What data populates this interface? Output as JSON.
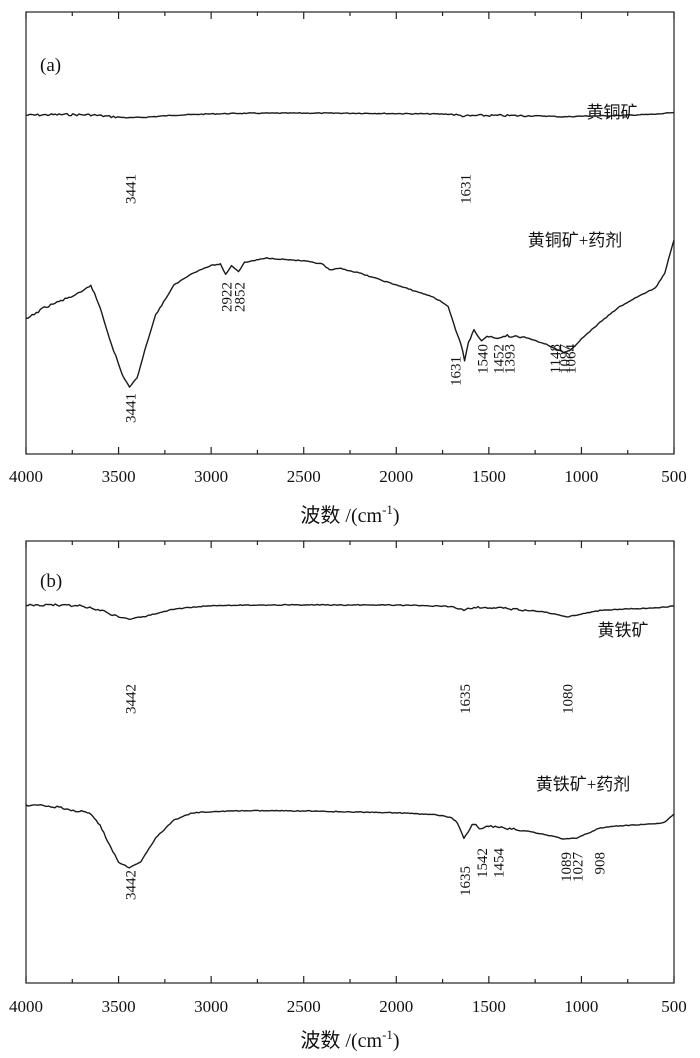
{
  "chart_data": [
    {
      "type": "line",
      "panel_label": "(a)",
      "xlabel": "波数 /(cm",
      "xlabel_sup": "-1",
      "xlabel_end": ")",
      "xlim": [
        4000,
        500
      ],
      "x_reversed": true,
      "x_ticks": [
        4000,
        3500,
        3000,
        2500,
        2000,
        1500,
        1000,
        500
      ],
      "y_ticks_shown": false,
      "series": [
        {
          "name": "黄铜矿",
          "points": [
            [
              4000,
              0.92
            ],
            [
              3800,
              0.93
            ],
            [
              3650,
              0.925
            ],
            [
              3550,
              0.9
            ],
            [
              3441,
              0.88
            ],
            [
              3350,
              0.89
            ],
            [
              3200,
              0.92
            ],
            [
              3000,
              0.94
            ],
            [
              2800,
              0.95
            ],
            [
              2500,
              0.952
            ],
            [
              2200,
              0.95
            ],
            [
              2000,
              0.945
            ],
            [
              1800,
              0.94
            ],
            [
              1700,
              0.935
            ],
            [
              1631,
              0.905
            ],
            [
              1560,
              0.915
            ],
            [
              1400,
              0.914
            ],
            [
              1200,
              0.907
            ],
            [
              1100,
              0.895
            ],
            [
              1000,
              0.905
            ],
            [
              800,
              0.915
            ],
            [
              600,
              0.935
            ],
            [
              500,
              0.96
            ]
          ],
          "peaks": [
            {
              "label": "3441",
              "x": 3441
            },
            {
              "label": "1631",
              "x": 1631
            }
          ]
        },
        {
          "name": "黄铜矿+药剂",
          "points": [
            [
              4000,
              0.47
            ],
            [
              3900,
              0.55
            ],
            [
              3800,
              0.6
            ],
            [
              3700,
              0.65
            ],
            [
              3650,
              0.7
            ],
            [
              3600,
              0.55
            ],
            [
              3550,
              0.35
            ],
            [
              3480,
              0.1
            ],
            [
              3441,
              0.02
            ],
            [
              3400,
              0.08
            ],
            [
              3350,
              0.3
            ],
            [
              3300,
              0.5
            ],
            [
              3200,
              0.7
            ],
            [
              3100,
              0.78
            ],
            [
              3000,
              0.83
            ],
            [
              2950,
              0.84
            ],
            [
              2922,
              0.77
            ],
            [
              2890,
              0.83
            ],
            [
              2852,
              0.79
            ],
            [
              2820,
              0.85
            ],
            [
              2700,
              0.88
            ],
            [
              2500,
              0.86
            ],
            [
              2400,
              0.84
            ],
            [
              2360,
              0.8
            ],
            [
              2300,
              0.81
            ],
            [
              2200,
              0.78
            ],
            [
              2000,
              0.7
            ],
            [
              1900,
              0.66
            ],
            [
              1800,
              0.62
            ],
            [
              1720,
              0.56
            ],
            [
              1680,
              0.4
            ],
            [
              1650,
              0.3
            ],
            [
              1631,
              0.2
            ],
            [
              1610,
              0.32
            ],
            [
              1580,
              0.4
            ],
            [
              1540,
              0.33
            ],
            [
              1500,
              0.36
            ],
            [
              1452,
              0.34
            ],
            [
              1400,
              0.37
            ],
            [
              1393,
              0.36
            ],
            [
              1300,
              0.35
            ],
            [
              1200,
              0.31
            ],
            [
              1148,
              0.28
            ],
            [
              1097,
              0.25
            ],
            [
              1064,
              0.26
            ],
            [
              1000,
              0.34
            ],
            [
              900,
              0.45
            ],
            [
              800,
              0.55
            ],
            [
              700,
              0.62
            ],
            [
              600,
              0.68
            ],
            [
              550,
              0.78
            ],
            [
              500,
              1.0
            ]
          ],
          "peaks": [
            {
              "label": "3441",
              "x": 3441
            },
            {
              "label": "2922",
              "x": 2922
            },
            {
              "label": "2852",
              "x": 2852
            },
            {
              "label": "1631",
              "x": 1631
            },
            {
              "label": "1540",
              "x": 1540
            },
            {
              "label": "1452",
              "x": 1452
            },
            {
              "label": "1393",
              "x": 1393
            },
            {
              "label": "1148",
              "x": 1148
            },
            {
              "label": "1097",
              "x": 1097
            },
            {
              "label": "1064",
              "x": 1064
            }
          ]
        }
      ]
    },
    {
      "type": "line",
      "panel_label": "(b)",
      "xlabel": "波数 /(cm",
      "xlabel_sup": "-1",
      "xlabel_end": ")",
      "xlim": [
        4000,
        500
      ],
      "x_reversed": true,
      "x_ticks": [
        4000,
        3500,
        3000,
        2500,
        2000,
        1500,
        1000,
        500
      ],
      "y_ticks_shown": false,
      "series": [
        {
          "name": "黄铁矿",
          "points": [
            [
              4000,
              0.95
            ],
            [
              3800,
              0.95
            ],
            [
              3700,
              0.94
            ],
            [
              3600,
              0.9
            ],
            [
              3500,
              0.83
            ],
            [
              3442,
              0.81
            ],
            [
              3350,
              0.84
            ],
            [
              3200,
              0.91
            ],
            [
              3000,
              0.945
            ],
            [
              2800,
              0.95
            ],
            [
              2500,
              0.951
            ],
            [
              2000,
              0.95
            ],
            [
              1800,
              0.94
            ],
            [
              1700,
              0.935
            ],
            [
              1635,
              0.9
            ],
            [
              1580,
              0.925
            ],
            [
              1400,
              0.915
            ],
            [
              1200,
              0.88
            ],
            [
              1080,
              0.83
            ],
            [
              1000,
              0.86
            ],
            [
              900,
              0.895
            ],
            [
              700,
              0.915
            ],
            [
              600,
              0.92
            ],
            [
              500,
              0.94
            ]
          ],
          "peaks": [
            {
              "label": "3442",
              "x": 3442
            },
            {
              "label": "1635",
              "x": 1635
            },
            {
              "label": "1080",
              "x": 1080
            }
          ]
        },
        {
          "name": "黄铁矿+药剂",
          "points": [
            [
              4000,
              0.62
            ],
            [
              3900,
              0.62
            ],
            [
              3800,
              0.6
            ],
            [
              3700,
              0.57
            ],
            [
              3650,
              0.55
            ],
            [
              3600,
              0.45
            ],
            [
              3550,
              0.3
            ],
            [
              3500,
              0.15
            ],
            [
              3442,
              0.1
            ],
            [
              3380,
              0.15
            ],
            [
              3300,
              0.35
            ],
            [
              3200,
              0.5
            ],
            [
              3100,
              0.56
            ],
            [
              3000,
              0.57
            ],
            [
              2800,
              0.578
            ],
            [
              2500,
              0.575
            ],
            [
              2000,
              0.56
            ],
            [
              1800,
              0.545
            ],
            [
              1700,
              0.52
            ],
            [
              1660,
              0.45
            ],
            [
              1635,
              0.34
            ],
            [
              1600,
              0.44
            ],
            [
              1580,
              0.47
            ],
            [
              1542,
              0.42
            ],
            [
              1500,
              0.45
            ],
            [
              1454,
              0.44
            ],
            [
              1300,
              0.41
            ],
            [
              1200,
              0.38
            ],
            [
              1089,
              0.34
            ],
            [
              1027,
              0.35
            ],
            [
              950,
              0.4
            ],
            [
              908,
              0.43
            ],
            [
              800,
              0.45
            ],
            [
              700,
              0.46
            ],
            [
              600,
              0.47
            ],
            [
              550,
              0.48
            ],
            [
              500,
              0.55
            ]
          ],
          "peaks": [
            {
              "label": "3442",
              "x": 3442
            },
            {
              "label": "1635",
              "x": 1635
            },
            {
              "label": "1542",
              "x": 1542
            },
            {
              "label": "1454",
              "x": 1454
            },
            {
              "label": "1089",
              "x": 1089
            },
            {
              "label": "1027",
              "x": 1027
            },
            {
              "label": "908",
              "x": 908
            }
          ]
        }
      ]
    }
  ]
}
